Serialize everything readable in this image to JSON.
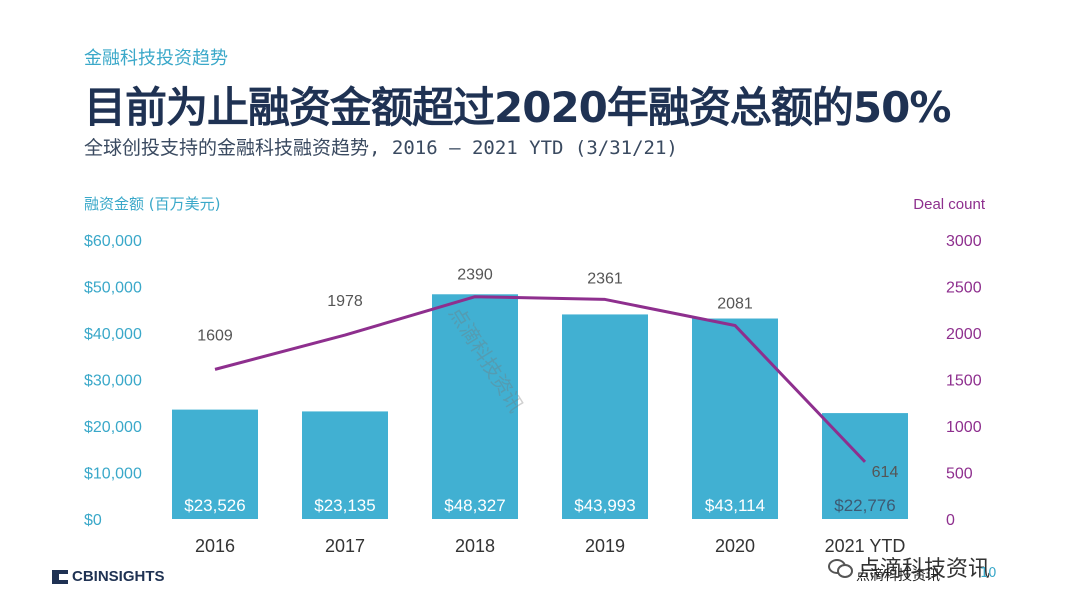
{
  "header": {
    "section_label": "金融科技投资趋势",
    "headline": "目前为止融资金额超过2020年融资总额的50%",
    "subtitle": "全球创投支持的金融科技融资趋势, 2016 – 2021 YTD (3/31/21)"
  },
  "colors": {
    "bar": "#41b0d2",
    "line": "#8e2f8e",
    "left_axis_text": "#3aa8c9",
    "right_axis_text": "#8e2f8e",
    "headline": "#1f3253"
  },
  "chart_data": {
    "type": "bar",
    "categories": [
      "2016",
      "2017",
      "2018",
      "2019",
      "2020",
      "2021 YTD"
    ],
    "left_axis_title": "融资金额 (百万美元)",
    "right_axis_title": "Deal count",
    "left_ticks": [
      "$0",
      "$10,000",
      "$20,000",
      "$30,000",
      "$40,000",
      "$50,000",
      "$60,000"
    ],
    "right_ticks": [
      "0",
      "500",
      "1000",
      "1500",
      "2000",
      "2500",
      "3000"
    ],
    "ylim_left": [
      0,
      60000
    ],
    "ylim_right": [
      0,
      3000
    ],
    "series": [
      {
        "type": "bar",
        "axis": "left",
        "values": [
          23526,
          23135,
          48327,
          43993,
          43114,
          22776
        ],
        "labels": [
          "$23,526",
          "$23,135",
          "$48,327",
          "$43,993",
          "$43,114",
          "$22,776"
        ]
      },
      {
        "type": "line",
        "axis": "right",
        "values": [
          1609,
          1978,
          2390,
          2361,
          2081,
          614
        ],
        "labels": [
          "1609",
          "1978",
          "2390",
          "2361",
          "2081",
          "614"
        ]
      }
    ],
    "grid": false
  },
  "footer": {
    "logo_text": "CBINSIGHTS",
    "watermark_text": "点滴科技资讯",
    "watermark_small": "点滴科技资讯",
    "page_number": "10"
  }
}
